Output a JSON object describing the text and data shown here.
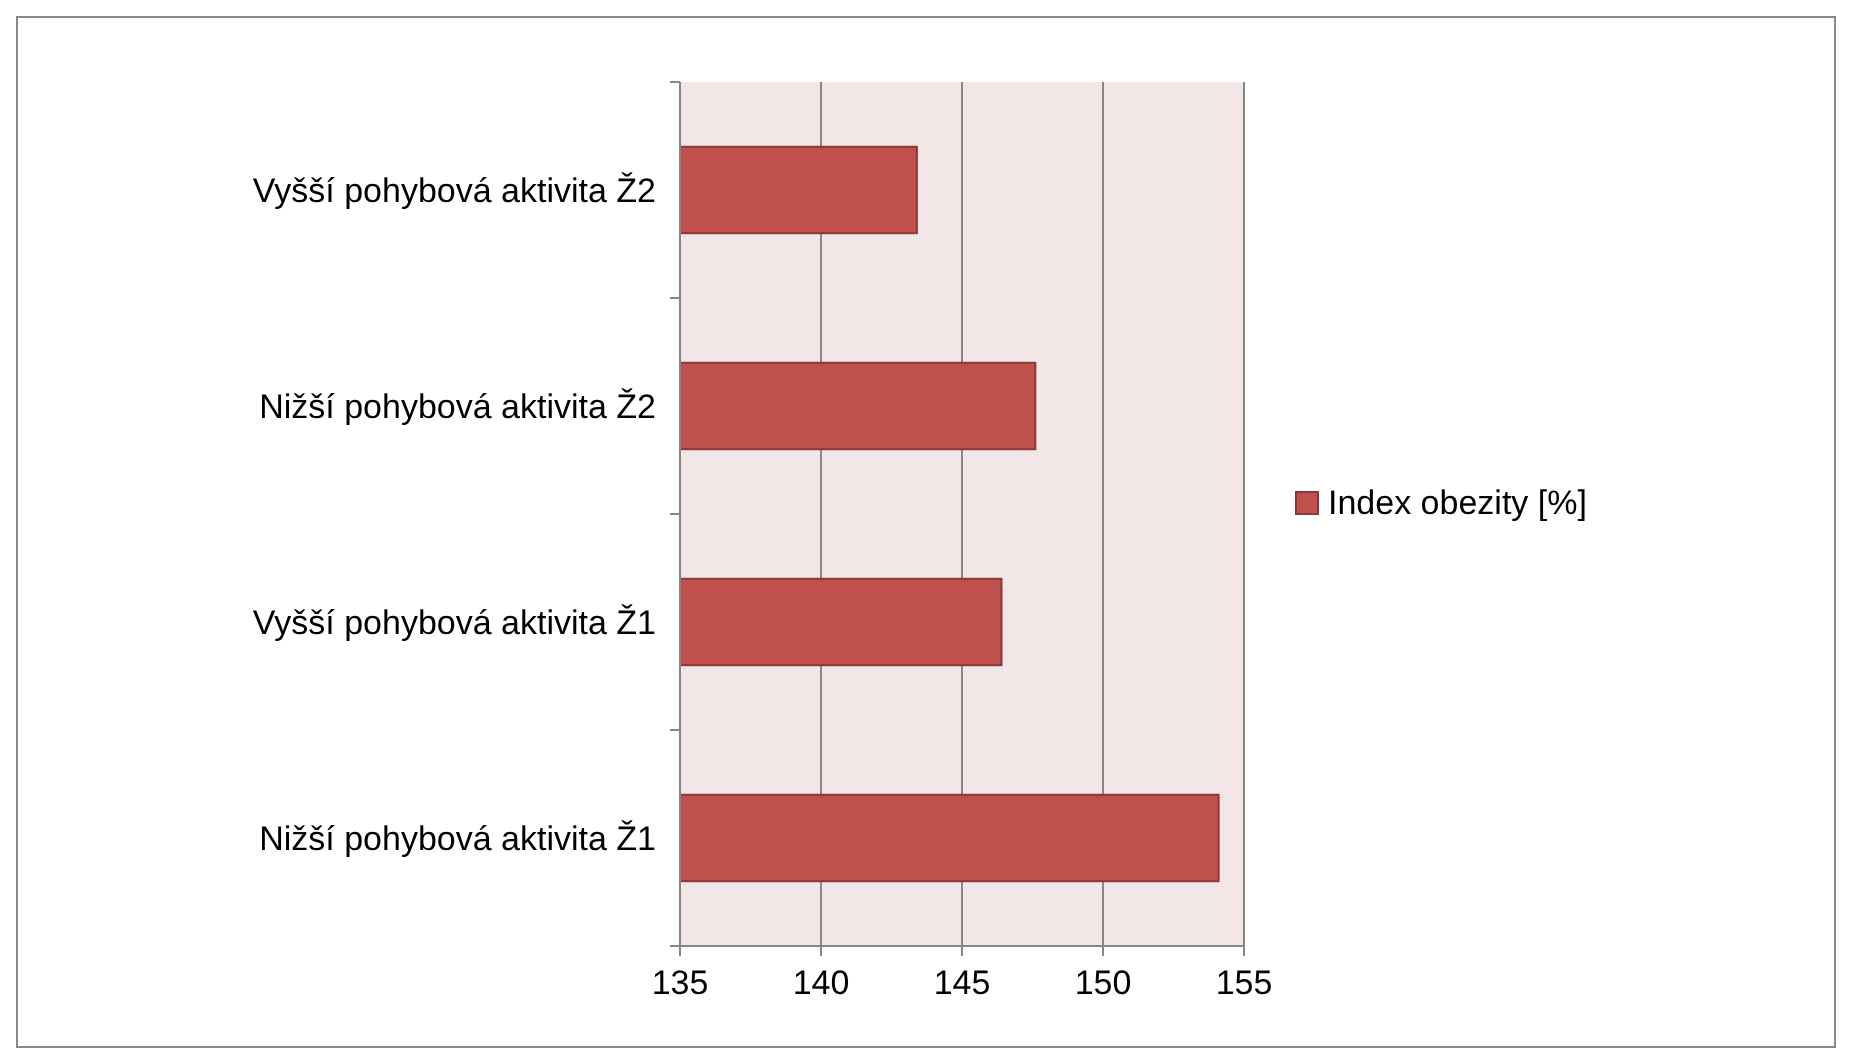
{
  "chart_data": {
    "type": "bar",
    "orientation": "horizontal",
    "categories": [
      "Vyšší pohybová aktivita Ž2",
      "Nižší pohybová aktivita Ž2",
      "Vyšší pohybová aktivita Ž1",
      "Nižší pohybová aktivita Ž1"
    ],
    "series": [
      {
        "name": "Index obezity [%]",
        "color": "#c0504d",
        "values": [
          143.4,
          147.6,
          146.4,
          154.1
        ]
      }
    ],
    "xlim": [
      135,
      155
    ],
    "xticks": [
      135,
      140,
      145,
      150,
      155
    ],
    "grid": "x",
    "legend": "right"
  }
}
